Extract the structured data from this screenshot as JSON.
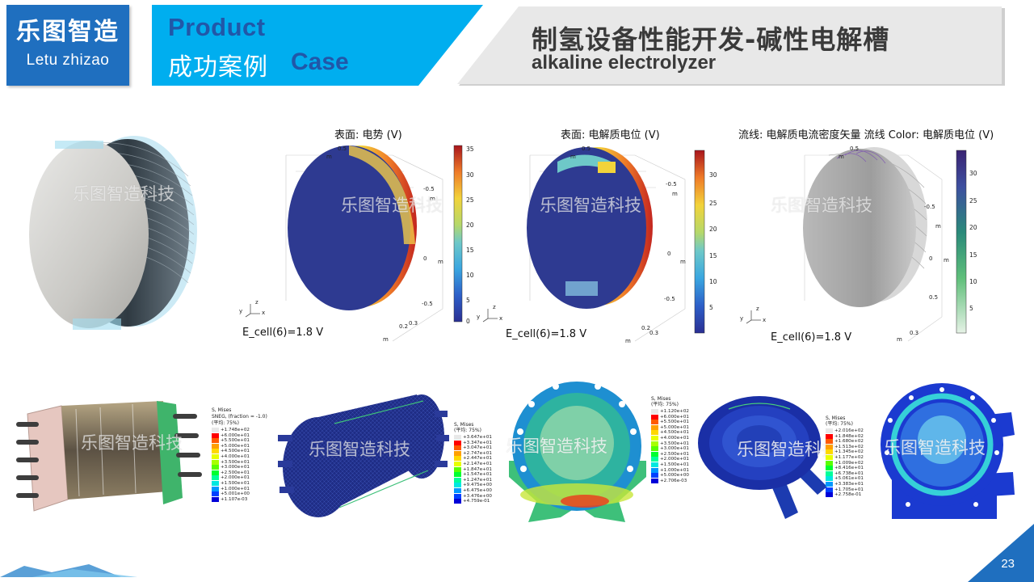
{
  "logo": {
    "name_cn": "乐图智造",
    "name_en": "Letu zhizao"
  },
  "case_banner": {
    "product": "Product",
    "label_cn": "成功案例",
    "label_en": "Case"
  },
  "title": {
    "cn": "制氢设备性能开发-碱性电解槽",
    "en": "alkaline electrolyzer"
  },
  "watermark": "乐图智造科技",
  "colors": {
    "brand_blue": "#1f6fbf",
    "banner_cyan": "#00aeef",
    "title_gray": "#e6e6e6"
  },
  "top_row": {
    "potential": {
      "title": "表面: 电势 (V)",
      "ecell": "E_cell(6)=1.8 V",
      "colorbar_ticks": [
        "35",
        "30",
        "25",
        "20",
        "15",
        "10",
        "5",
        "0"
      ],
      "axis_ticks": [
        "0.5",
        "m",
        "-0.5",
        "m",
        "0",
        "m",
        "-0.5",
        "0.2",
        "0.3",
        "m"
      ]
    },
    "electrolyte": {
      "title": "表面: 电解质电位 (V)",
      "ecell": "E_cell(6)=1.8 V",
      "colorbar_ticks": [
        "30",
        "25",
        "20",
        "15",
        "10",
        "5"
      ],
      "axis_ticks": [
        "0.5",
        "m",
        "-0.5",
        "m",
        "0",
        "m",
        "-0.5",
        "0.2",
        "0.3",
        "m"
      ]
    },
    "streamline": {
      "title": "流线: 电解质电流密度矢量    流线 Color: 电解质电位 (V)",
      "ecell": "E_cell(6)=1.8 V",
      "colorbar_ticks": [
        "30",
        "25",
        "20",
        "15",
        "10",
        "5"
      ],
      "axis_ticks": [
        "0.5",
        "m",
        "-0.5",
        "m",
        "0",
        "m",
        "0.5",
        "0.3",
        "m"
      ]
    },
    "triad": {
      "x": "x",
      "y": "y",
      "z": "z"
    }
  },
  "bottom_row": {
    "legend1": {
      "head": [
        "S, Mises",
        "SNEG, (fraction = -1.0)",
        "(平均: 75%)"
      ],
      "rows": [
        "+1.748e+02",
        "+6.000e+01",
        "+5.500e+01",
        "+5.000e+01",
        "+4.500e+01",
        "+4.000e+01",
        "+3.500e+01",
        "+3.000e+01",
        "+2.500e+01",
        "+2.000e+01",
        "+1.500e+01",
        "+1.000e+01",
        "+5.001e+00",
        "+1.107e-03"
      ]
    },
    "legend2": {
      "head": [
        "S, Mises",
        "(平均: 75%)"
      ],
      "rows": [
        "+3.647e+01",
        "+3.347e+01",
        "+3.047e+01",
        "+2.747e+01",
        "+2.447e+01",
        "+2.147e+01",
        "+1.847e+01",
        "+1.547e+01",
        "+1.247e+01",
        "+9.475e+00",
        "+6.475e+00",
        "+3.476e+00",
        "+4.759e-01"
      ]
    },
    "legend3": {
      "head": [
        "S, Mises",
        "(平均: 75%)"
      ],
      "rows": [
        "+1.120e+02",
        "+6.000e+01",
        "+5.500e+01",
        "+5.000e+01",
        "+4.500e+01",
        "+4.000e+01",
        "+3.500e+01",
        "+3.000e+01",
        "+2.500e+01",
        "+2.000e+01",
        "+1.500e+01",
        "+1.000e+01",
        "+5.000e+00",
        "+2.706e-03"
      ]
    },
    "legend4": {
      "head": [
        "S, Mises",
        "(平均: 75%)"
      ],
      "rows": [
        "+2.016e+02",
        "+1.848e+02",
        "+1.680e+02",
        "+1.513e+02",
        "+1.345e+02",
        "+1.177e+02",
        "+1.009e+02",
        "+8.416e+01",
        "+6.738e+01",
        "+5.061e+01",
        "+3.383e+01",
        "+1.705e+01",
        "+2.758e-01"
      ]
    }
  },
  "page_number": "23"
}
